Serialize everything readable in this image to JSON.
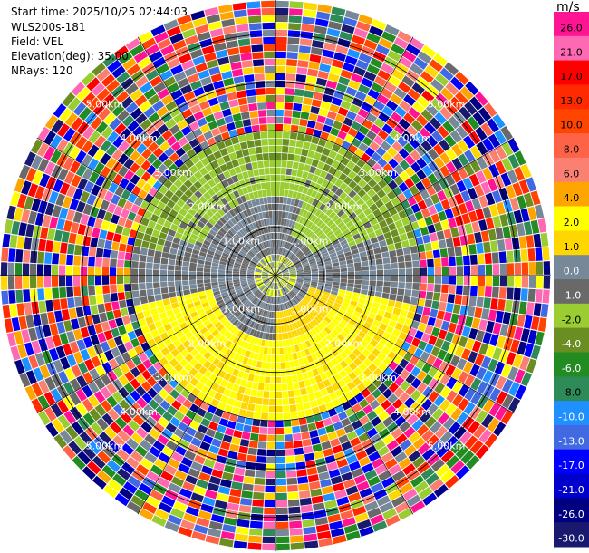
{
  "header": {
    "start_time": "Start time: 2025/10/25 02:44:03",
    "instrument": "WLS200s-181",
    "field": "Field: VEL",
    "elevation": "Elevation(deg): 35.00",
    "nrays": "NRays: 120"
  },
  "chart_data": {
    "type": "heatmap",
    "projection": "polar PPI",
    "field": "VEL",
    "n_rays": 120,
    "range_max_km": 5.7,
    "range_ring_labels": [
      "1.00km",
      "2.00km",
      "3.00km",
      "4.00km",
      "5.00km"
    ],
    "range_rings_km": [
      1,
      2,
      3,
      4,
      5
    ],
    "regions": [
      {
        "range_km": [
          0,
          0.5
        ],
        "description": "mostly 0 to 1 m/s, some small positive/negative"
      },
      {
        "range_km": [
          0.5,
          2.4
        ],
        "north": -2.0,
        "south_east": 2.0,
        "east_west": 0.0
      },
      {
        "range_km": [
          2.4,
          3.0
        ],
        "north": -4.0,
        "south": 4.0
      },
      {
        "range_km": [
          3.0,
          5.7
        ],
        "description": "noise, random values -30 to 30 m/s"
      }
    ],
    "colorbar": {
      "unit": "m/s",
      "tick_labels": [
        "26.0",
        "21.0",
        "17.0",
        "13.0",
        "10.0",
        "8.0",
        "6.0",
        "4.0",
        "2.0",
        "1.0",
        "0.0",
        "-1.0",
        "-2.0",
        "-4.0",
        "-6.0",
        "-8.0",
        "-10.0",
        "-13.0",
        "-17.0",
        "-21.0",
        "-26.0",
        "-30.0"
      ],
      "bins": [
        {
          "v": 26.0,
          "color": "#ff1493"
        },
        {
          "v": 21.0,
          "color": "#ff69b4"
        },
        {
          "v": 17.0,
          "color": "#ff0000"
        },
        {
          "v": 13.0,
          "color": "#ff2a00"
        },
        {
          "v": 10.0,
          "color": "#ff4500"
        },
        {
          "v": 8.0,
          "color": "#ff6347"
        },
        {
          "v": 6.0,
          "color": "#fa8072"
        },
        {
          "v": 4.0,
          "color": "#ffa500"
        },
        {
          "v": 2.0,
          "color": "#ffff00"
        },
        {
          "v": 1.0,
          "color": "#ffd700"
        },
        {
          "v": 0.0,
          "color": "#778899"
        },
        {
          "v": -1.0,
          "color": "#696969"
        },
        {
          "v": -2.0,
          "color": "#9acd32"
        },
        {
          "v": -4.0,
          "color": "#6b8e23"
        },
        {
          "v": -6.0,
          "color": "#228b22"
        },
        {
          "v": -8.0,
          "color": "#2e8b57"
        },
        {
          "v": -10.0,
          "color": "#1e90ff"
        },
        {
          "v": -13.0,
          "color": "#4169e1"
        },
        {
          "v": -17.0,
          "color": "#0000ff"
        },
        {
          "v": -21.0,
          "color": "#0000cd"
        },
        {
          "v": -26.0,
          "color": "#000080"
        },
        {
          "v": -30.0,
          "color": "#191970"
        }
      ]
    }
  }
}
